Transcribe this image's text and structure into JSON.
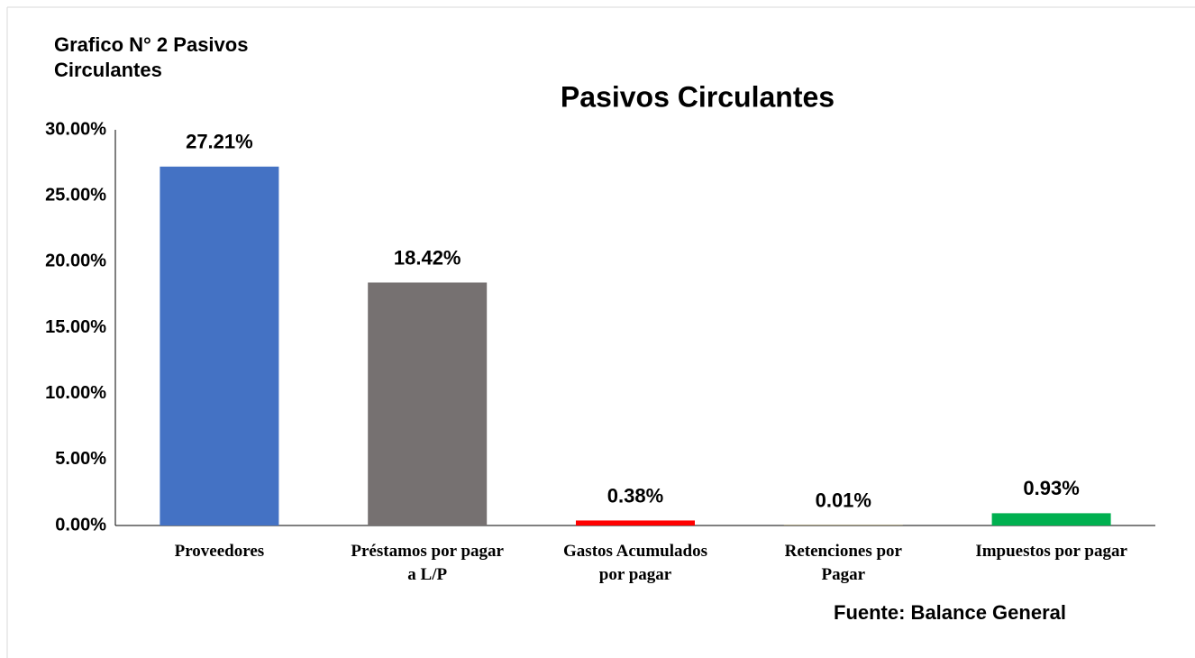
{
  "chart_data": {
    "type": "bar",
    "header": "Grafico N° 2 Pasivos Circulantes",
    "title": "Pasivos Circulantes",
    "source": "Fuente: Balance General",
    "categories": [
      "Proveedores",
      "Préstamos por pagar a L/P",
      "Gastos Acumulados por pagar",
      "Retenciones por Pagar",
      "Impuestos por pagar"
    ],
    "values": [
      27.21,
      18.42,
      0.38,
      0.01,
      0.93
    ],
    "value_labels": [
      "27.21%",
      "18.42%",
      "0.38%",
      "0.01%",
      "0.93%"
    ],
    "colors": [
      "#4472c4",
      "#767171",
      "#ff0000",
      "#ffc000",
      "#00b050"
    ],
    "ylim": [
      0,
      30
    ],
    "yticks": [
      {
        "value": 0,
        "label": "0.00%"
      },
      {
        "value": 5,
        "label": "5.00%"
      },
      {
        "value": 10,
        "label": "10.00%"
      },
      {
        "value": 15,
        "label": "15.00%"
      },
      {
        "value": 20,
        "label": "20.00%"
      },
      {
        "value": 25,
        "label": "25.00%"
      },
      {
        "value": 30,
        "label": "30.00%"
      }
    ],
    "grid": false
  }
}
